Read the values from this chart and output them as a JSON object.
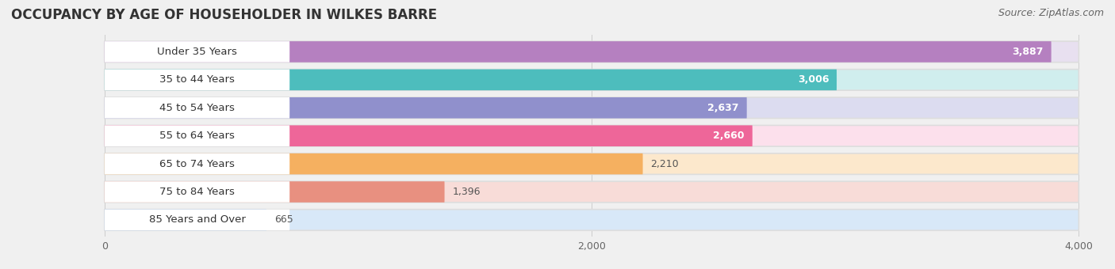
{
  "title": "OCCUPANCY BY AGE OF HOUSEHOLDER IN WILKES BARRE",
  "source": "Source: ZipAtlas.com",
  "categories": [
    "Under 35 Years",
    "35 to 44 Years",
    "45 to 54 Years",
    "55 to 64 Years",
    "65 to 74 Years",
    "75 to 84 Years",
    "85 Years and Over"
  ],
  "values": [
    3887,
    3006,
    2637,
    2660,
    2210,
    1396,
    665
  ],
  "bar_colors": [
    "#b580c0",
    "#4dbdbd",
    "#9090cc",
    "#ee6699",
    "#f5b060",
    "#e89080",
    "#90b8e8"
  ],
  "bar_bg_colors": [
    "#e8e0f0",
    "#d0eeee",
    "#dcdcf0",
    "#fce0ec",
    "#fce8cc",
    "#f8dcd8",
    "#d8e8f8"
  ],
  "label_bg_color": "#ffffff",
  "value_colors_inside": [
    true,
    true,
    true,
    true,
    false,
    false,
    false
  ],
  "xlim_max": 4000,
  "xticks": [
    0,
    2000,
    4000
  ],
  "title_fontsize": 12,
  "source_fontsize": 9,
  "label_fontsize": 9.5,
  "value_fontsize": 9,
  "tick_fontsize": 9,
  "background_color": "#f0f0f0"
}
